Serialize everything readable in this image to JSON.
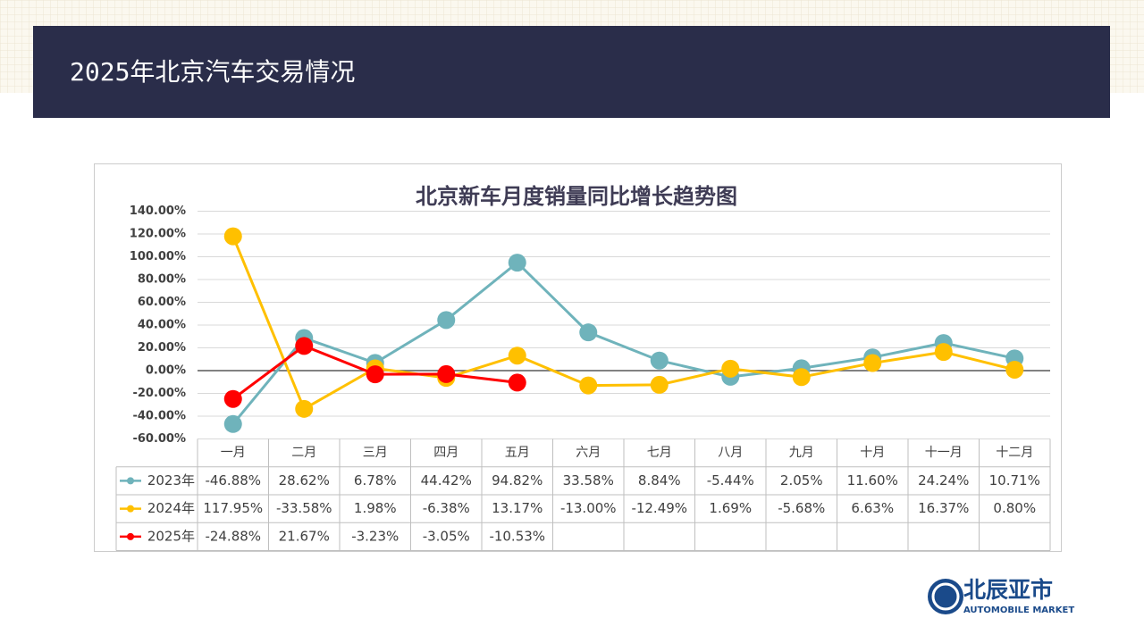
{
  "header": {
    "title": "2025年北京汽车交易情况"
  },
  "chart_data": {
    "type": "line",
    "title": "北京新车月度销量同比增长趋势图",
    "categories": [
      "一月",
      "二月",
      "三月",
      "四月",
      "五月",
      "六月",
      "七月",
      "八月",
      "九月",
      "十月",
      "十一月",
      "十二月"
    ],
    "series": [
      {
        "name": "2023年",
        "color": "#6fb3bb",
        "values": [
          -46.88,
          28.62,
          6.78,
          44.42,
          94.82,
          33.58,
          8.84,
          -5.44,
          2.05,
          11.6,
          24.24,
          10.71
        ],
        "value_labels": [
          "-46.88%",
          "28.62%",
          "6.78%",
          "44.42%",
          "94.82%",
          "33.58%",
          "8.84%",
          "-5.44%",
          "2.05%",
          "11.60%",
          "24.24%",
          "10.71%"
        ]
      },
      {
        "name": "2024年",
        "color": "#ffc000",
        "values": [
          117.95,
          -33.58,
          1.98,
          -6.38,
          13.17,
          -13.0,
          -12.49,
          1.69,
          -5.68,
          6.63,
          16.37,
          0.8
        ],
        "value_labels": [
          "117.95%",
          "-33.58%",
          "1.98%",
          "-6.38%",
          "13.17%",
          "-13.00%",
          "-12.49%",
          "1.69%",
          "-5.68%",
          "6.63%",
          "16.37%",
          "0.80%"
        ]
      },
      {
        "name": "2025年",
        "color": "#ff0000",
        "values": [
          -24.88,
          21.67,
          -3.23,
          -3.05,
          -10.53,
          null,
          null,
          null,
          null,
          null,
          null,
          null
        ],
        "value_labels": [
          "-24.88%",
          "21.67%",
          "-3.23%",
          "-3.05%",
          "-10.53%",
          null,
          null,
          null,
          null,
          null,
          null,
          null
        ]
      }
    ],
    "ylim": [
      -60,
      140
    ],
    "yticks": [
      {
        "value": -60,
        "label": "-60.00%"
      },
      {
        "value": -40,
        "label": "-40.00%"
      },
      {
        "value": -20,
        "label": "-20.00%"
      },
      {
        "value": 0,
        "label": "0.00%"
      },
      {
        "value": 20,
        "label": "20.00%"
      },
      {
        "value": 40,
        "label": "40.00%"
      },
      {
        "value": 60,
        "label": "60.00%"
      },
      {
        "value": 80,
        "label": "80.00%"
      },
      {
        "value": 100,
        "label": "100.00%"
      },
      {
        "value": 120,
        "label": "120.00%"
      },
      {
        "value": 140,
        "label": "140.00%"
      }
    ],
    "grid": true
  },
  "logo": {
    "name": "北辰亚市",
    "subtitle": "AUTOMOBILE MARKET"
  }
}
